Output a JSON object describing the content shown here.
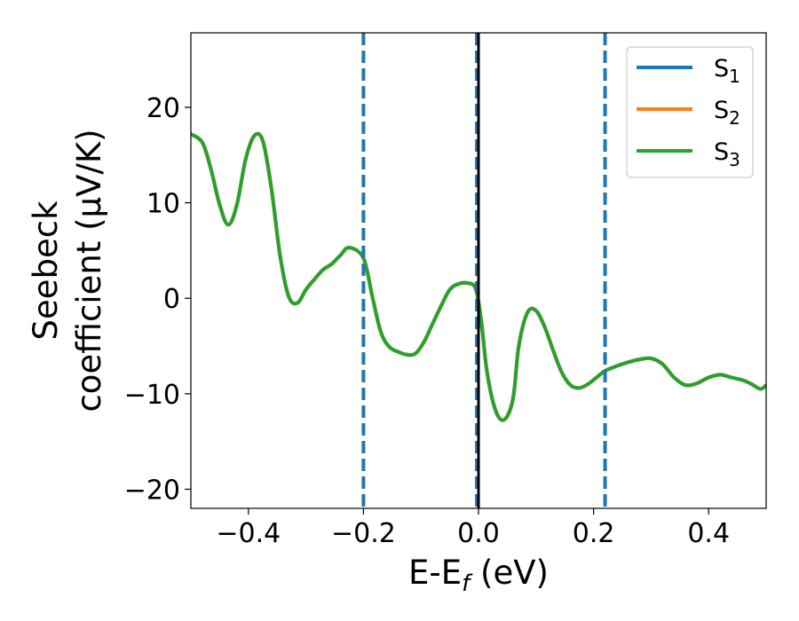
{
  "chart_data": {
    "type": "line",
    "xlabel": "E-E_f (eV)",
    "xlabel_parts": {
      "base": "E-E",
      "sub": "f",
      "unit": " (eV)"
    },
    "ylabel": [
      "Seebeck",
      "coefficient  (μV/K)"
    ],
    "xlim": [
      -0.5,
      0.5
    ],
    "ylim": [
      -22,
      27.8
    ],
    "xticks": [
      -0.4,
      -0.2,
      0.0,
      0.2,
      0.4
    ],
    "xtick_labels": [
      "−0.4",
      "−0.2",
      "0.0",
      "0.2",
      "0.4"
    ],
    "yticks": [
      -20,
      -10,
      0,
      10,
      20
    ],
    "ytick_labels": [
      "−20",
      "−10",
      "0",
      "10",
      "20"
    ],
    "grid": false,
    "legend_position": "top-right",
    "x": [
      -0.5,
      -0.48,
      -0.465,
      -0.45,
      -0.435,
      -0.42,
      -0.405,
      -0.39,
      -0.375,
      -0.36,
      -0.345,
      -0.33,
      -0.315,
      -0.3,
      -0.285,
      -0.27,
      -0.255,
      -0.24,
      -0.225,
      -0.2,
      -0.185,
      -0.17,
      -0.155,
      -0.14,
      -0.125,
      -0.11,
      -0.095,
      -0.08,
      -0.065,
      -0.05,
      -0.035,
      -0.02,
      -0.005,
      0.005,
      0.015,
      0.03,
      0.045,
      0.06,
      0.07,
      0.085,
      0.1,
      0.115,
      0.13,
      0.145,
      0.16,
      0.175,
      0.19,
      0.205,
      0.22,
      0.24,
      0.26,
      0.28,
      0.3,
      0.32,
      0.34,
      0.36,
      0.38,
      0.4,
      0.42,
      0.44,
      0.46,
      0.475,
      0.49,
      0.5
    ],
    "series": [
      {
        "name": "S",
        "sub": "1",
        "color": "#1f77b4",
        "values": [
          17.2,
          16.3,
          13.5,
          9.8,
          7.7,
          9.8,
          14.5,
          17.0,
          16.5,
          11.5,
          4.5,
          0.2,
          -0.5,
          0.9,
          2.0,
          3.0,
          3.6,
          4.5,
          5.3,
          4.2,
          0.3,
          -3.5,
          -5.1,
          -5.6,
          -5.9,
          -5.8,
          -4.6,
          -2.7,
          -0.8,
          0.9,
          1.5,
          1.6,
          1.0,
          -2.5,
          -7.8,
          -11.8,
          -12.7,
          -10.5,
          -5.0,
          -1.5,
          -1.3,
          -3.0,
          -5.5,
          -7.8,
          -9.1,
          -9.4,
          -9.0,
          -8.3,
          -7.6,
          -7.1,
          -6.7,
          -6.4,
          -6.3,
          -6.9,
          -8.3,
          -9.1,
          -8.9,
          -8.3,
          -8.0,
          -8.3,
          -8.6,
          -9.0,
          -9.5,
          -9.1
        ]
      },
      {
        "name": "S",
        "sub": "2",
        "color": "#ff7f0e",
        "values": [
          17.2,
          16.3,
          13.5,
          9.8,
          7.7,
          9.8,
          14.5,
          17.0,
          16.5,
          11.5,
          4.5,
          0.2,
          -0.5,
          0.9,
          2.0,
          3.0,
          3.6,
          4.5,
          5.3,
          4.2,
          0.3,
          -3.5,
          -5.1,
          -5.6,
          -5.9,
          -5.8,
          -4.6,
          -2.7,
          -0.8,
          0.9,
          1.5,
          1.6,
          1.0,
          -2.5,
          -7.8,
          -11.8,
          -12.7,
          -10.5,
          -5.0,
          -1.5,
          -1.3,
          -3.0,
          -5.5,
          -7.8,
          -9.1,
          -9.4,
          -9.0,
          -8.3,
          -7.6,
          -7.1,
          -6.7,
          -6.4,
          -6.3,
          -6.9,
          -8.3,
          -9.1,
          -8.9,
          -8.3,
          -8.0,
          -8.3,
          -8.6,
          -9.0,
          -9.5,
          -9.1
        ]
      },
      {
        "name": "S",
        "sub": "3",
        "color": "#2ca02c",
        "values": [
          17.2,
          16.3,
          13.5,
          9.8,
          7.7,
          9.8,
          14.5,
          17.0,
          16.5,
          11.5,
          4.5,
          0.2,
          -0.5,
          0.9,
          2.0,
          3.0,
          3.6,
          4.5,
          5.3,
          4.2,
          0.3,
          -3.5,
          -5.1,
          -5.6,
          -5.9,
          -5.8,
          -4.6,
          -2.7,
          -0.8,
          0.9,
          1.5,
          1.6,
          1.0,
          -2.5,
          -7.8,
          -11.8,
          -12.7,
          -10.5,
          -5.0,
          -1.5,
          -1.3,
          -3.0,
          -5.5,
          -7.8,
          -9.1,
          -9.4,
          -9.0,
          -8.3,
          -7.6,
          -7.1,
          -6.7,
          -6.4,
          -6.3,
          -6.9,
          -8.3,
          -9.1,
          -8.9,
          -8.3,
          -8.0,
          -8.3,
          -8.6,
          -9.0,
          -9.5,
          -9.1
        ]
      }
    ],
    "vlines": [
      {
        "x": -0.2,
        "style": "dashed",
        "color": "#1f77b4"
      },
      {
        "x": -0.003,
        "style": "dashed",
        "color": "#1f77b4"
      },
      {
        "x": 0.22,
        "style": "dashed",
        "color": "#1f77b4"
      },
      {
        "x": 0.0,
        "style": "solid",
        "color": "#000000"
      }
    ]
  }
}
